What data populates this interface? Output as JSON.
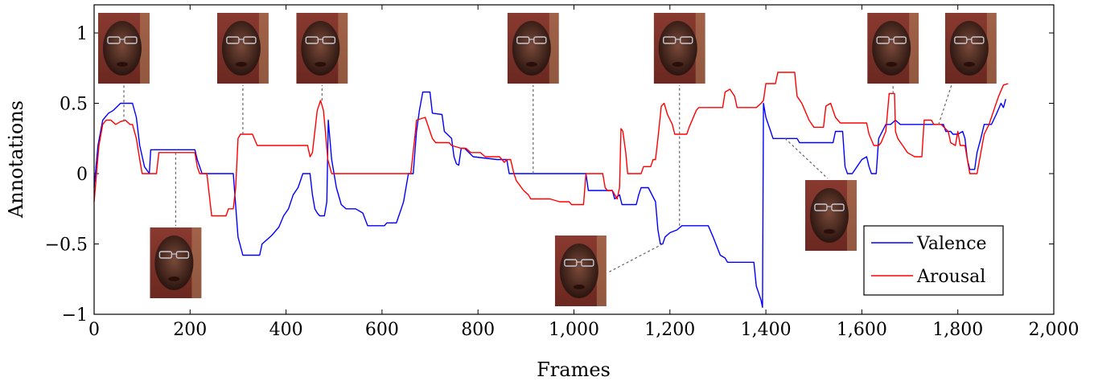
{
  "chart_data": {
    "type": "line",
    "title": "",
    "xlabel": "Frames",
    "ylabel": "Annotations",
    "xlim": [
      0,
      2000
    ],
    "ylim": [
      -1,
      1.2
    ],
    "x_ticks": [
      0,
      200,
      400,
      600,
      800,
      1000,
      1200,
      1400,
      1600,
      1800,
      2000
    ],
    "x_tick_labels": [
      "0",
      "200",
      "400",
      "600",
      "800",
      "1,000",
      "1,200",
      "1,400",
      "1,600",
      "1,800",
      "2,000"
    ],
    "y_ticks": [
      -1,
      -0.5,
      0,
      0.5,
      1
    ],
    "y_tick_labels": [
      "−1",
      "−0.5",
      "0",
      "0.5",
      "1"
    ],
    "legend_position": "bottom-right",
    "series": [
      {
        "name": "Valence",
        "color": "#0000ff",
        "points": [
          [
            0,
            -0.1
          ],
          [
            8,
            0.2
          ],
          [
            18,
            0.38
          ],
          [
            30,
            0.43
          ],
          [
            40,
            0.45
          ],
          [
            55,
            0.5
          ],
          [
            80,
            0.5
          ],
          [
            88,
            0.4
          ],
          [
            95,
            0.2
          ],
          [
            105,
            0.05
          ],
          [
            115,
            0
          ],
          [
            118,
            0.17
          ],
          [
            200,
            0.17
          ],
          [
            210,
            0.17
          ],
          [
            215,
            0.1
          ],
          [
            225,
            0
          ],
          [
            240,
            0
          ],
          [
            280,
            0
          ],
          [
            290,
            0
          ],
          [
            300,
            -0.45
          ],
          [
            310,
            -0.58
          ],
          [
            330,
            -0.58
          ],
          [
            345,
            -0.58
          ],
          [
            350,
            -0.5
          ],
          [
            360,
            -0.47
          ],
          [
            370,
            -0.44
          ],
          [
            385,
            -0.38
          ],
          [
            395,
            -0.3
          ],
          [
            405,
            -0.25
          ],
          [
            415,
            -0.15
          ],
          [
            425,
            -0.1
          ],
          [
            435,
            0
          ],
          [
            450,
            0
          ],
          [
            455,
            -0.15
          ],
          [
            460,
            -0.25
          ],
          [
            465,
            -0.28
          ],
          [
            470,
            -0.3
          ],
          [
            480,
            -0.3
          ],
          [
            485,
            -0.2
          ],
          [
            488,
            0.38
          ],
          [
            495,
            0.1
          ],
          [
            505,
            -0.1
          ],
          [
            515,
            -0.22
          ],
          [
            525,
            -0.25
          ],
          [
            545,
            -0.25
          ],
          [
            560,
            -0.28
          ],
          [
            570,
            -0.37
          ],
          [
            605,
            -0.37
          ],
          [
            610,
            -0.35
          ],
          [
            630,
            -0.35
          ],
          [
            635,
            -0.3
          ],
          [
            640,
            -0.25
          ],
          [
            645,
            -0.2
          ],
          [
            650,
            -0.1
          ],
          [
            655,
            0
          ],
          [
            665,
            0
          ],
          [
            672,
            0.3
          ],
          [
            678,
            0.45
          ],
          [
            685,
            0.58
          ],
          [
            700,
            0.58
          ],
          [
            705,
            0.43
          ],
          [
            725,
            0.42
          ],
          [
            730,
            0.3
          ],
          [
            745,
            0.25
          ],
          [
            750,
            0.12
          ],
          [
            755,
            0.07
          ],
          [
            760,
            0.06
          ],
          [
            765,
            0.18
          ],
          [
            772,
            0.18
          ],
          [
            790,
            0.12
          ],
          [
            840,
            0.1
          ],
          [
            860,
            0.1
          ],
          [
            865,
            0
          ],
          [
            1025,
            0
          ],
          [
            1030,
            -0.12
          ],
          [
            1060,
            -0.12
          ],
          [
            1080,
            -0.12
          ],
          [
            1085,
            -0.18
          ],
          [
            1095,
            -0.15
          ],
          [
            1100,
            -0.22
          ],
          [
            1130,
            -0.22
          ],
          [
            1135,
            -0.15
          ],
          [
            1140,
            -0.1
          ],
          [
            1155,
            -0.1
          ],
          [
            1170,
            -0.2
          ],
          [
            1175,
            -0.4
          ],
          [
            1180,
            -0.5
          ],
          [
            1185,
            -0.5
          ],
          [
            1190,
            -0.45
          ],
          [
            1200,
            -0.42
          ],
          [
            1215,
            -0.4
          ],
          [
            1225,
            -0.37
          ],
          [
            1265,
            -0.37
          ],
          [
            1280,
            -0.37
          ],
          [
            1290,
            -0.45
          ],
          [
            1305,
            -0.58
          ],
          [
            1315,
            -0.6
          ],
          [
            1320,
            -0.63
          ],
          [
            1375,
            -0.63
          ],
          [
            1380,
            -0.8
          ],
          [
            1385,
            -0.85
          ],
          [
            1390,
            -0.9
          ],
          [
            1393,
            -0.95
          ],
          [
            1395,
            0.5
          ],
          [
            1400,
            0.4
          ],
          [
            1410,
            0.3
          ],
          [
            1415,
            0.25
          ],
          [
            1440,
            0.25
          ],
          [
            1465,
            0.25
          ],
          [
            1470,
            0.22
          ],
          [
            1500,
            0.22
          ],
          [
            1540,
            0.22
          ],
          [
            1545,
            0.3
          ],
          [
            1560,
            0.3
          ],
          [
            1565,
            0.05
          ],
          [
            1570,
            0
          ],
          [
            1580,
            0
          ],
          [
            1590,
            0.05
          ],
          [
            1600,
            0.1
          ],
          [
            1610,
            0.12
          ],
          [
            1615,
            0.05
          ],
          [
            1620,
            0
          ],
          [
            1630,
            0
          ],
          [
            1635,
            0.25
          ],
          [
            1650,
            0.35
          ],
          [
            1660,
            0.35
          ],
          [
            1670,
            0.38
          ],
          [
            1680,
            0.35
          ],
          [
            1740,
            0.35
          ],
          [
            1760,
            0.35
          ],
          [
            1770,
            0.35
          ],
          [
            1775,
            0.3
          ],
          [
            1785,
            0.3
          ],
          [
            1790,
            0.28
          ],
          [
            1800,
            0.28
          ],
          [
            1810,
            0.3
          ],
          [
            1815,
            0.25
          ],
          [
            1820,
            0.1
          ],
          [
            1825,
            0.03
          ],
          [
            1835,
            0.03
          ],
          [
            1840,
            0.15
          ],
          [
            1848,
            0.25
          ],
          [
            1855,
            0.35
          ],
          [
            1870,
            0.35
          ],
          [
            1880,
            0.42
          ],
          [
            1890,
            0.5
          ],
          [
            1895,
            0.47
          ],
          [
            1900,
            0.53
          ]
        ]
      },
      {
        "name": "Arousal",
        "color": "#ff0000",
        "points": [
          [
            0,
            -0.2
          ],
          [
            5,
            0
          ],
          [
            10,
            0.2
          ],
          [
            18,
            0.35
          ],
          [
            25,
            0.38
          ],
          [
            35,
            0.38
          ],
          [
            45,
            0.35
          ],
          [
            55,
            0.37
          ],
          [
            65,
            0.38
          ],
          [
            75,
            0.35
          ],
          [
            80,
            0.35
          ],
          [
            88,
            0.25
          ],
          [
            95,
            0.1
          ],
          [
            100,
            0
          ],
          [
            130,
            0
          ],
          [
            135,
            0.15
          ],
          [
            195,
            0.15
          ],
          [
            210,
            0.15
          ],
          [
            215,
            0.05
          ],
          [
            220,
            0
          ],
          [
            235,
            0
          ],
          [
            245,
            -0.3
          ],
          [
            275,
            -0.3
          ],
          [
            280,
            -0.25
          ],
          [
            290,
            -0.25
          ],
          [
            295,
            -0.1
          ],
          [
            300,
            0.25
          ],
          [
            305,
            0.28
          ],
          [
            330,
            0.28
          ],
          [
            340,
            0.2
          ],
          [
            355,
            0.2
          ],
          [
            445,
            0.2
          ],
          [
            450,
            0.12
          ],
          [
            455,
            0.15
          ],
          [
            460,
            0.3
          ],
          [
            465,
            0.45
          ],
          [
            472,
            0.52
          ],
          [
            478,
            0.45
          ],
          [
            482,
            0.3
          ],
          [
            487,
            0.1
          ],
          [
            495,
            0
          ],
          [
            660,
            0
          ],
          [
            668,
            0.25
          ],
          [
            672,
            0.38
          ],
          [
            690,
            0.4
          ],
          [
            700,
            0.3
          ],
          [
            705,
            0.25
          ],
          [
            712,
            0.22
          ],
          [
            740,
            0.22
          ],
          [
            745,
            0.2
          ],
          [
            765,
            0.18
          ],
          [
            775,
            0.18
          ],
          [
            785,
            0.15
          ],
          [
            805,
            0.15
          ],
          [
            815,
            0.12
          ],
          [
            845,
            0.12
          ],
          [
            855,
            0.08
          ],
          [
            860,
            0.1
          ],
          [
            868,
            0.1
          ],
          [
            875,
            0
          ],
          [
            880,
            -0.05
          ],
          [
            895,
            -0.12
          ],
          [
            905,
            -0.15
          ],
          [
            910,
            -0.18
          ],
          [
            950,
            -0.18
          ],
          [
            970,
            -0.2
          ],
          [
            990,
            -0.2
          ],
          [
            995,
            -0.22
          ],
          [
            1020,
            -0.22
          ],
          [
            1025,
            0
          ],
          [
            1060,
            0
          ],
          [
            1065,
            -0.1
          ],
          [
            1070,
            -0.12
          ],
          [
            1080,
            -0.12
          ],
          [
            1090,
            -0.18
          ],
          [
            1095,
            -0.1
          ],
          [
            1098,
            0.32
          ],
          [
            1102,
            0.3
          ],
          [
            1108,
            0.15
          ],
          [
            1112,
            0
          ],
          [
            1125,
            0
          ],
          [
            1140,
            0
          ],
          [
            1145,
            0.05
          ],
          [
            1160,
            0.05
          ],
          [
            1165,
            0.1
          ],
          [
            1170,
            0.1
          ],
          [
            1175,
            0.25
          ],
          [
            1182,
            0.48
          ],
          [
            1188,
            0.5
          ],
          [
            1195,
            0.42
          ],
          [
            1205,
            0.35
          ],
          [
            1210,
            0.28
          ],
          [
            1225,
            0.28
          ],
          [
            1235,
            0.28
          ],
          [
            1240,
            0.33
          ],
          [
            1255,
            0.45
          ],
          [
            1260,
            0.47
          ],
          [
            1310,
            0.47
          ],
          [
            1315,
            0.58
          ],
          [
            1325,
            0.6
          ],
          [
            1335,
            0.55
          ],
          [
            1340,
            0.47
          ],
          [
            1380,
            0.47
          ],
          [
            1390,
            0.5
          ],
          [
            1395,
            0.52
          ],
          [
            1400,
            0.64
          ],
          [
            1420,
            0.64
          ],
          [
            1425,
            0.72
          ],
          [
            1460,
            0.72
          ],
          [
            1465,
            0.55
          ],
          [
            1475,
            0.5
          ],
          [
            1485,
            0.42
          ],
          [
            1490,
            0.38
          ],
          [
            1500,
            0.33
          ],
          [
            1520,
            0.33
          ],
          [
            1525,
            0.48
          ],
          [
            1535,
            0.5
          ],
          [
            1545,
            0.4
          ],
          [
            1555,
            0.36
          ],
          [
            1610,
            0.36
          ],
          [
            1615,
            0.28
          ],
          [
            1625,
            0.2
          ],
          [
            1635,
            0.2
          ],
          [
            1640,
            0.22
          ],
          [
            1650,
            0.3
          ],
          [
            1657,
            0.57
          ],
          [
            1668,
            0.57
          ],
          [
            1670,
            0.3
          ],
          [
            1675,
            0.25
          ],
          [
            1685,
            0.2
          ],
          [
            1695,
            0.15
          ],
          [
            1710,
            0.12
          ],
          [
            1725,
            0.12
          ],
          [
            1730,
            0.38
          ],
          [
            1745,
            0.38
          ],
          [
            1750,
            0.35
          ],
          [
            1765,
            0.35
          ],
          [
            1780,
            0.3
          ],
          [
            1785,
            0.22
          ],
          [
            1795,
            0.2
          ],
          [
            1800,
            0.3
          ],
          [
            1805,
            0.2
          ],
          [
            1815,
            0.2
          ],
          [
            1825,
            0
          ],
          [
            1840,
            0
          ],
          [
            1855,
            0.28
          ],
          [
            1865,
            0.35
          ],
          [
            1875,
            0.45
          ],
          [
            1885,
            0.55
          ],
          [
            1895,
            0.63
          ],
          [
            1905,
            0.64
          ]
        ]
      }
    ],
    "face_annotations": [
      {
        "frame": 62,
        "value": 0.37,
        "position": "above"
      },
      {
        "frame": 170,
        "value": 0.15,
        "position": "below"
      },
      {
        "frame": 310,
        "value": 0.28,
        "position": "above"
      },
      {
        "frame": 475,
        "value": 0.52,
        "position": "above"
      },
      {
        "frame": 915,
        "value": 0.0,
        "position": "above"
      },
      {
        "frame": 1185,
        "value": -0.5,
        "position": "below-left"
      },
      {
        "frame": 1220,
        "value": -0.37,
        "position": "above"
      },
      {
        "frame": 1440,
        "value": 0.25,
        "position": "below-right"
      },
      {
        "frame": 1665,
        "value": 0.57,
        "position": "above"
      },
      {
        "frame": 1760,
        "value": 0.35,
        "position": "above-right"
      }
    ]
  }
}
